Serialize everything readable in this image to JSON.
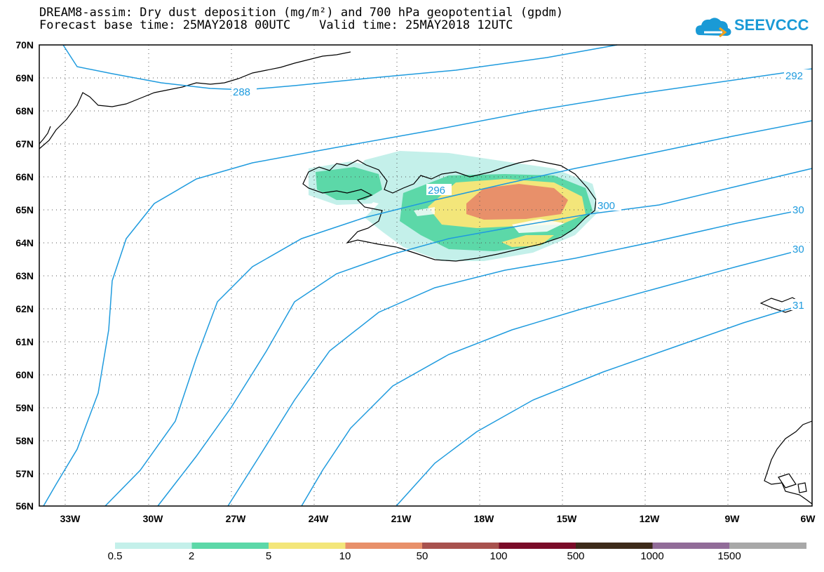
{
  "title_line1": "DREAM8-assim: Dry dust deposition (mg/m²) and 700 hPa geopotential (gpdm)",
  "title_line2": "Forecast base time: 25MAY2018 00UTC    Valid time: 25MAY2018 12UTC",
  "logo_text": "SEEVCCC",
  "logo_icon": "cloud-icon",
  "map": {
    "lon_range": [
      -34.5,
      -6
    ],
    "lat_range": [
      56,
      70
    ],
    "lat_labels": [
      "70N",
      "69N",
      "68N",
      "67N",
      "66N",
      "65N",
      "64N",
      "63N",
      "62N",
      "61N",
      "60N",
      "59N",
      "58N",
      "57N",
      "56N"
    ],
    "lon_labels": [
      "33W",
      "30W",
      "27W",
      "24W",
      "21W",
      "18W",
      "15W",
      "12W",
      "9W",
      "6W"
    ],
    "grid": "dotted",
    "contour_color": "#1f9bde",
    "contour_labels": [
      "288",
      "292",
      "296",
      "300",
      "30",
      "30",
      "31"
    ]
  },
  "legend": {
    "labels": [
      "0.5",
      "2",
      "5",
      "10",
      "50",
      "100",
      "500",
      "1000",
      "1500"
    ],
    "colors": [
      "#c4f0ea",
      "#5cd8a8",
      "#f3e67a",
      "#e8906a",
      "#a8524e",
      "#7a0b28",
      "#3d2a1a",
      "#916c98",
      "#a8a8a8"
    ]
  }
}
